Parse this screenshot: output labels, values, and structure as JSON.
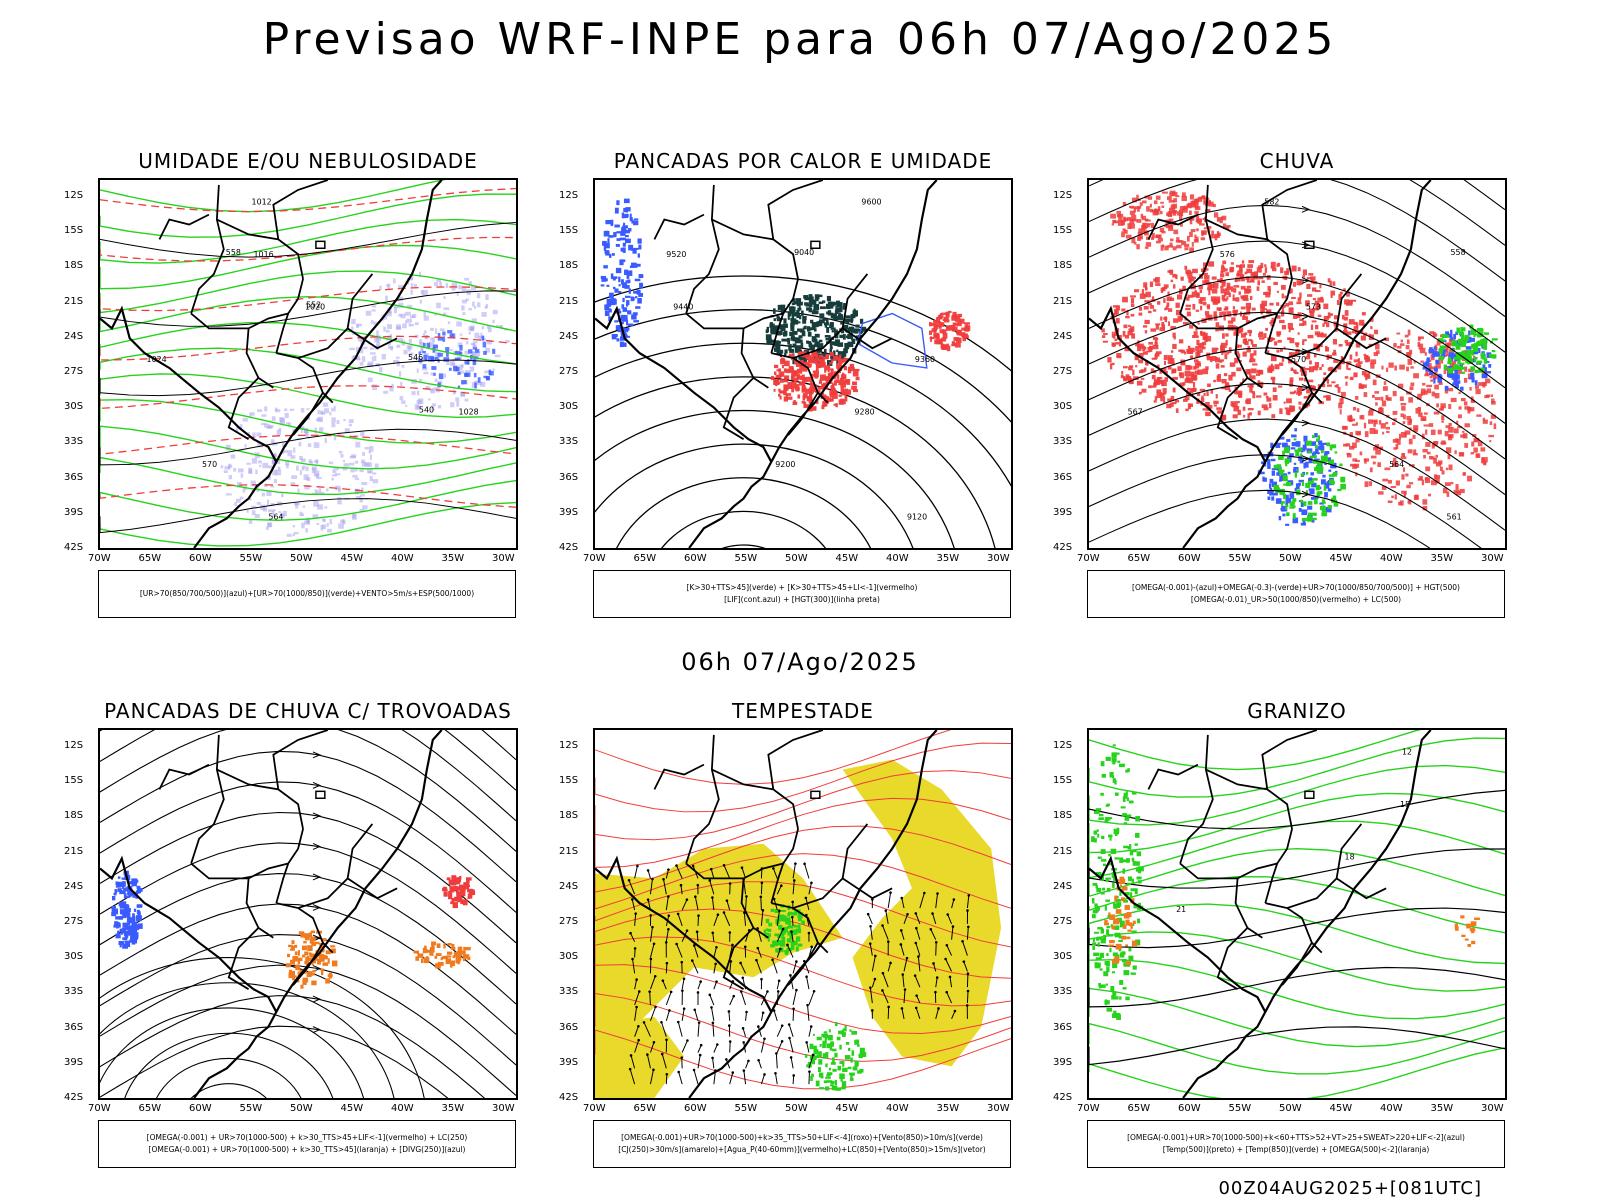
{
  "title": "Previsao WRF-INPE  para 06h 07/Ago/2025",
  "mid_title": "06h 07/Ago/2025",
  "run_stamp": "00Z04AUG2025+[081UTC]",
  "axes": {
    "lat_labels": [
      "12S",
      "15S",
      "18S",
      "21S",
      "24S",
      "27S",
      "30S",
      "33S",
      "36S",
      "39S",
      "42S"
    ],
    "lon_labels": [
      "70W",
      "65W",
      "60W",
      "55W",
      "50W",
      "45W",
      "40W",
      "35W",
      "30W"
    ]
  },
  "colors": {
    "blue": "#3a5bff",
    "green": "#27d21d",
    "red": "#f03c3c",
    "orange": "#f07a1e",
    "yellow": "#e8d92a",
    "lavender": "#a9a4f0",
    "dark_teal": "#163c3c",
    "black": "#000000"
  },
  "panels": [
    {
      "id": "umidade",
      "title": "UMIDADE E/OU NEBULOSIDADE",
      "legend": [
        "[UR>70(850/700/500)](azul)+[UR>70(1000/850)](verde)+VENTO>5m/s+ESP(500/1000)"
      ],
      "contour_labels": [
        "1012",
        "1016",
        "1020",
        "1024",
        "1028",
        "570",
        "564",
        "558",
        "552",
        "546",
        "540"
      ]
    },
    {
      "id": "pancadas_calor",
      "title": "PANCADAS POR CALOR E UMIDADE",
      "legend": [
        "[K>30+TTS>45](verde) + [K>30+TTS>45+LI<-1](vermelho)",
        "[LIF](cont.azul) + [HGT(300)](linha preta)"
      ],
      "contour_labels": [
        "9600",
        "9520",
        "9440",
        "9360",
        "9280",
        "9200",
        "9120",
        "9040"
      ]
    },
    {
      "id": "chuva",
      "title": "CHUVA",
      "legend": [
        "[OMEGA(-0.001)-(azul)+OMEGA(-0.3)-(verde)+UR>70(1000/850/700/500)] + HGT(500)",
        "[OMEGA(-0.01)_UR>50(1000/850)(vermelho) + LC(500)"
      ],
      "contour_labels": [
        "582",
        "576",
        "573",
        "570",
        "567",
        "564",
        "561",
        "558"
      ]
    },
    {
      "id": "trovoadas",
      "title": "PANCADAS DE CHUVA C/ TROVOADAS",
      "legend": [
        "[OMEGA(-0.001) + UR>70(1000-500) + k>30_TTS>45+LIF<-1](vermelho) + LC(250)",
        "[OMEGA(-0.001) + UR>70(1000-500) + k>30_TTS>45](laranja) + [DIVG(250)](azul)"
      ],
      "contour_labels": []
    },
    {
      "id": "tempestade",
      "title": "TEMPESTADE",
      "legend": [
        "[OMEGA(-0.001)+UR>70(1000-500)+k>35_TTS>50+LIF<-4](roxo)+[Vento(850)>10m/s](verde)",
        "[CJ(250)>30m/s](amarelo)+[Agua_P(40-60mm)](vermelho)+LC(850)+[Vento(850)>15m/s](vetor)"
      ],
      "contour_labels": []
    },
    {
      "id": "granizo",
      "title": "GRANIZO",
      "legend": [
        "[OMEGA(-0.001)+UR>70(1000-500)+k<60+TTS>52+VT>25+SWEAT>220+LIF<-2](azul)",
        "[Temp(500)](preto) + [Temp(850)](verde) + [OMEGA(500)<-2](laranja)"
      ],
      "contour_labels": [
        "12",
        "15",
        "18",
        "21"
      ]
    }
  ]
}
